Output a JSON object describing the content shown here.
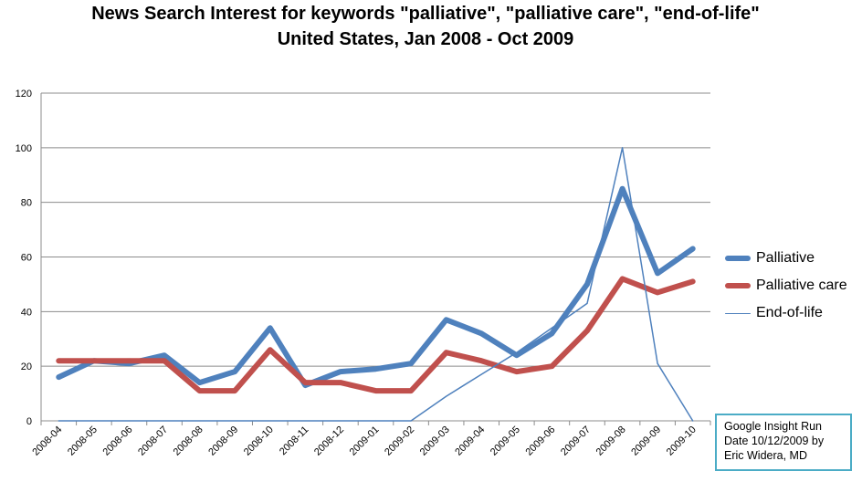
{
  "title": {
    "line1": "News Search Interest for keywords \"palliative\", \"palliative care\", \"end-of-life\"",
    "line2": "United States, Jan 2008 - Oct 2009"
  },
  "note": {
    "lines": [
      "Google Insight Run",
      "Date 10/12/2009  by",
      "Eric Widera, MD"
    ]
  },
  "colors": {
    "palliative": "#4f81bd",
    "palliative_care": "#c0504d",
    "end_of_life": "#4f81bd",
    "grid": "#8c8c8c",
    "note_border": "#4bacc6"
  },
  "chart_data": {
    "type": "line",
    "title": "News Search Interest for keywords \"palliative\", \"palliative care\", \"end-of-life\" United States, Jan 2008 - Oct 2009",
    "xlabel": "",
    "ylabel": "",
    "ylim": [
      0,
      120
    ],
    "yticks": [
      0,
      20,
      40,
      60,
      80,
      100,
      120
    ],
    "grid": true,
    "legend_position": "right",
    "categories": [
      "2008-04",
      "2008-05",
      "2008-06",
      "2008-07",
      "2008-08",
      "2008-09",
      "2008-10",
      "2008-11",
      "2008-12",
      "2009-01",
      "2009-02",
      "2009-03",
      "2009-04",
      "2009-05",
      "2009-06",
      "2009-07",
      "2009-08",
      "2009-09",
      "2009-10"
    ],
    "series": [
      {
        "name": "Palliative",
        "values": [
          16,
          22,
          21,
          24,
          14,
          18,
          34,
          13,
          18,
          19,
          21,
          37,
          32,
          24,
          32,
          50,
          85,
          54,
          63
        ]
      },
      {
        "name": "Palliative care",
        "values": [
          22,
          22,
          22,
          22,
          11,
          11,
          26,
          14,
          14,
          11,
          11,
          25,
          22,
          18,
          20,
          33,
          52,
          47,
          51
        ]
      },
      {
        "name": "End-of-life",
        "values": [
          0,
          0,
          0,
          0,
          0,
          0,
          0,
          0,
          0,
          0,
          0,
          9,
          17,
          25,
          34,
          43,
          100,
          21,
          0
        ]
      }
    ]
  }
}
